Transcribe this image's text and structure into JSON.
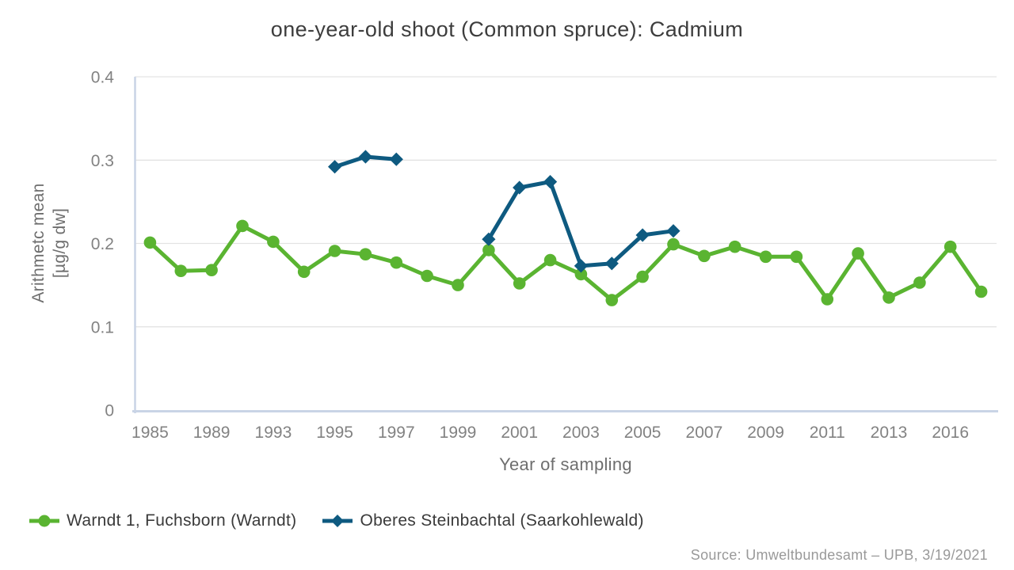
{
  "chart_data": {
    "type": "line",
    "title": "one-year-old shoot (Common spruce): Cadmium",
    "xlabel": "Year of sampling",
    "ylabel_line1": "Arithmetc mean",
    "ylabel_line2": "[µg/g dw]",
    "ylim": [
      0,
      0.4
    ],
    "yticks": [
      0,
      0.1,
      0.2,
      0.3,
      0.4
    ],
    "ytick_labels": [
      "0",
      "0.1",
      "0.2",
      "0.3",
      "0.4"
    ],
    "categories": [
      "1985",
      "1987",
      "1989",
      "1991",
      "1993",
      "1994",
      "1995",
      "1996",
      "1997",
      "1998",
      "1999",
      "2000",
      "2001",
      "2002",
      "2003",
      "2004",
      "2005",
      "2006",
      "2007",
      "2008",
      "2009",
      "2010",
      "2011",
      "2012",
      "2013",
      "2014",
      "2016",
      "2017"
    ],
    "xtick_labels": [
      "1985",
      "1989",
      "1993",
      "1995",
      "1997",
      "1999",
      "2001",
      "2003",
      "2005",
      "2007",
      "2009",
      "2011",
      "2013",
      "2016"
    ],
    "xtick_every": 2,
    "grid": "horizontal",
    "legend_position": "bottom-left",
    "colors": {
      "gridline": "#e3e3e3",
      "axis_line": "#c9d4e6"
    },
    "series": [
      {
        "name": "Warndt 1, Fuchsborn (Warndt)",
        "marker": "circle",
        "color": "#5ab431",
        "values": [
          0.201,
          0.167,
          0.168,
          0.221,
          0.202,
          0.166,
          0.191,
          0.187,
          0.177,
          0.161,
          0.15,
          0.192,
          0.152,
          0.18,
          0.163,
          0.132,
          0.16,
          0.199,
          0.185,
          0.196,
          0.184,
          0.184,
          0.133,
          0.188,
          0.135,
          0.153,
          0.196,
          0.142
        ]
      },
      {
        "name": "Oberes Steinbachtal (Saarkohlewald)",
        "marker": "diamond",
        "color": "#0e5a80",
        "values": [
          null,
          null,
          null,
          null,
          null,
          null,
          0.292,
          0.304,
          0.301,
          null,
          null,
          0.205,
          0.267,
          0.274,
          0.173,
          0.176,
          0.21,
          0.215,
          null,
          null,
          null,
          null,
          null,
          null,
          null,
          null,
          null,
          null
        ]
      }
    ]
  },
  "source": {
    "text": "Source: Umweltbundesamt – UPB, 3/19/2021"
  }
}
